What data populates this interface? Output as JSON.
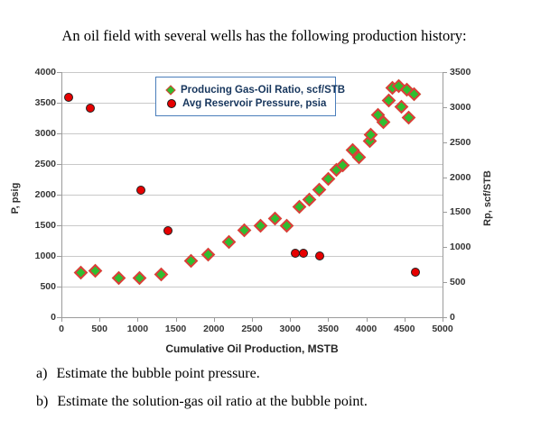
{
  "page": {
    "title": "An oil field with several wells has the following production history:"
  },
  "questions": [
    {
      "label": "a)",
      "text": "Estimate the bubble point pressure."
    },
    {
      "label": "b)",
      "text": "Estimate the solution-gas oil ratio at the bubble point."
    }
  ],
  "chart_data": {
    "type": "scatter",
    "xlabel": "Cumulative Oil Production, MSTB",
    "xlim": [
      0,
      5000
    ],
    "x_ticks": [
      0,
      500,
      1000,
      1500,
      2000,
      2500,
      3000,
      3500,
      4000,
      4500,
      5000
    ],
    "left_axis": {
      "label": "P, psig",
      "lim": [
        0,
        4000
      ],
      "ticks": [
        0,
        500,
        1000,
        1500,
        2000,
        2500,
        3000,
        3500,
        4000
      ]
    },
    "right_axis": {
      "label": "Rp, scf/STB",
      "lim": [
        0,
        3500
      ],
      "ticks": [
        0,
        500,
        1000,
        1500,
        2000,
        2500,
        3000,
        3500
      ]
    },
    "grid": "horizontal",
    "legend_position": "top-center",
    "legend": [
      {
        "label": "Producing Gas-Oil Ratio, scf/STB",
        "marker": "diamond",
        "fill": "#2fbe2f",
        "outline": "#e23b3b"
      },
      {
        "label": "Avg Reservoir Pressure, psia",
        "marker": "circle",
        "fill": "#e60000",
        "outline": "#202020"
      }
    ],
    "series": [
      {
        "name": "Producing Gas-Oil Ratio, scf/STB",
        "axis": "right",
        "marker": "diamond",
        "points": [
          [
            250,
            640
          ],
          [
            450,
            660
          ],
          [
            750,
            555
          ],
          [
            1025,
            565
          ],
          [
            1310,
            610
          ],
          [
            1700,
            805
          ],
          [
            1920,
            895
          ],
          [
            2200,
            1080
          ],
          [
            2405,
            1240
          ],
          [
            2615,
            1300
          ],
          [
            2800,
            1410
          ],
          [
            2955,
            1300
          ],
          [
            3125,
            1570
          ],
          [
            3255,
            1680
          ],
          [
            3380,
            1825
          ],
          [
            3505,
            1970
          ],
          [
            3605,
            2110
          ],
          [
            3690,
            2165
          ],
          [
            3820,
            2390
          ],
          [
            3905,
            2285
          ],
          [
            4045,
            2520
          ],
          [
            4060,
            2610
          ],
          [
            4150,
            2895
          ],
          [
            4220,
            2780
          ],
          [
            4300,
            3100
          ],
          [
            4340,
            3280
          ],
          [
            4425,
            3300
          ],
          [
            4465,
            3010
          ],
          [
            4530,
            3245
          ],
          [
            4555,
            2845
          ],
          [
            4625,
            3180
          ]
        ]
      },
      {
        "name": "Avg Reservoir Pressure, psia",
        "axis": "left",
        "marker": "circle",
        "points": [
          [
            100,
            3580
          ],
          [
            380,
            3410
          ],
          [
            1050,
            2060
          ],
          [
            1400,
            1400
          ],
          [
            3070,
            1030
          ],
          [
            3180,
            1030
          ],
          [
            3390,
            1000
          ],
          [
            4650,
            730
          ]
        ]
      }
    ],
    "colors": {
      "gor_fill": "#2fbe2f",
      "gor_outline": "#e23b3b",
      "pressure_fill": "#e60000",
      "pressure_outline": "#202020",
      "gridline": "#c9c9c9",
      "axis_line": "#9b9b9b",
      "legend_border": "#4a7ebb",
      "legend_text": "#17365d",
      "tick_text": "#353535"
    }
  }
}
